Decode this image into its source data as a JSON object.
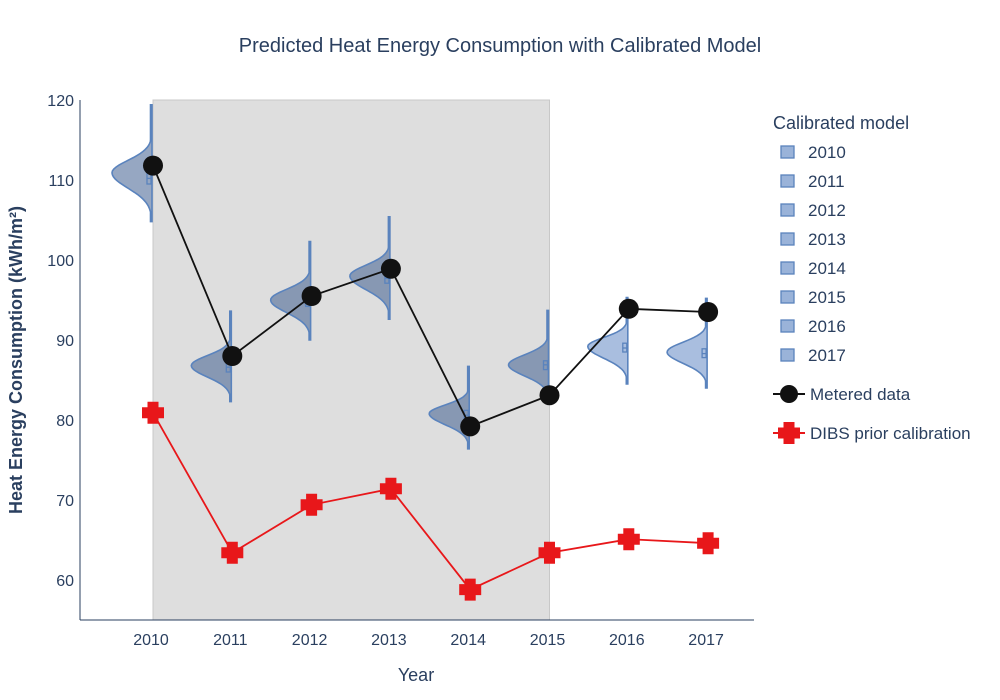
{
  "chart_data": {
    "type": "line",
    "title": "Predicted Heat Energy Consumption with Calibrated Model",
    "xlabel": "Year",
    "ylabel": "Heat Energy Consumption (kWh/m²)",
    "categories": [
      "2010",
      "2011",
      "2012",
      "2013",
      "2014",
      "2015",
      "2016",
      "2017"
    ],
    "ylim": [
      55,
      120
    ],
    "yticks": [
      60,
      70,
      80,
      90,
      100,
      110,
      120
    ],
    "shaded_period": [
      "2010",
      "2015"
    ],
    "grid": false,
    "legend_position": "right",
    "legend_title": "Calibrated model",
    "series": [
      {
        "name": "Metered data",
        "color": "#111111",
        "marker": "circle",
        "values": [
          111.8,
          88.0,
          95.5,
          98.9,
          79.2,
          83.1,
          93.9,
          93.5
        ]
      },
      {
        "name": "DIBS prior calibration",
        "color": "#e8171a",
        "marker": "cross",
        "values": [
          80.9,
          63.4,
          69.4,
          71.4,
          58.8,
          63.4,
          65.1,
          64.6
        ]
      }
    ],
    "distributions": [
      {
        "name": "2010",
        "mode": 110.9,
        "min": 104.8,
        "max": 119.4,
        "median": 110.2,
        "q1": 109.5,
        "q3": 111.0
      },
      {
        "name": "2011",
        "mode": 86.8,
        "min": 82.3,
        "max": 93.6,
        "median": 86.6,
        "q1": 86.0,
        "q3": 87.2
      },
      {
        "name": "2012",
        "mode": 95.0,
        "min": 90.0,
        "max": 102.3,
        "median": 94.9,
        "q1": 94.2,
        "q3": 95.6
      },
      {
        "name": "2013",
        "mode": 98.0,
        "min": 92.6,
        "max": 105.4,
        "median": 97.7,
        "q1": 97.1,
        "q3": 98.4
      },
      {
        "name": "2014",
        "mode": 80.8,
        "min": 76.4,
        "max": 86.7,
        "median": 80.6,
        "q1": 80.0,
        "q3": 81.2
      },
      {
        "name": "2015",
        "mode": 86.9,
        "min": 82.5,
        "max": 93.7,
        "median": 86.9,
        "q1": 86.3,
        "q3": 87.4
      },
      {
        "name": "2016",
        "mode": 89.2,
        "min": 84.5,
        "max": 95.3,
        "median": 89.0,
        "q1": 88.5,
        "q3": 89.6
      },
      {
        "name": "2017",
        "mode": 88.5,
        "min": 84.0,
        "max": 95.2,
        "median": 88.3,
        "q1": 87.8,
        "q3": 88.9
      }
    ],
    "colors": {
      "violin_fill": "#6f93c9",
      "violin_fill_dark": "#3f5f8f",
      "violin_stroke": "#5a83bd",
      "shade": "#dedede",
      "axis": "#2a3f5f"
    }
  }
}
